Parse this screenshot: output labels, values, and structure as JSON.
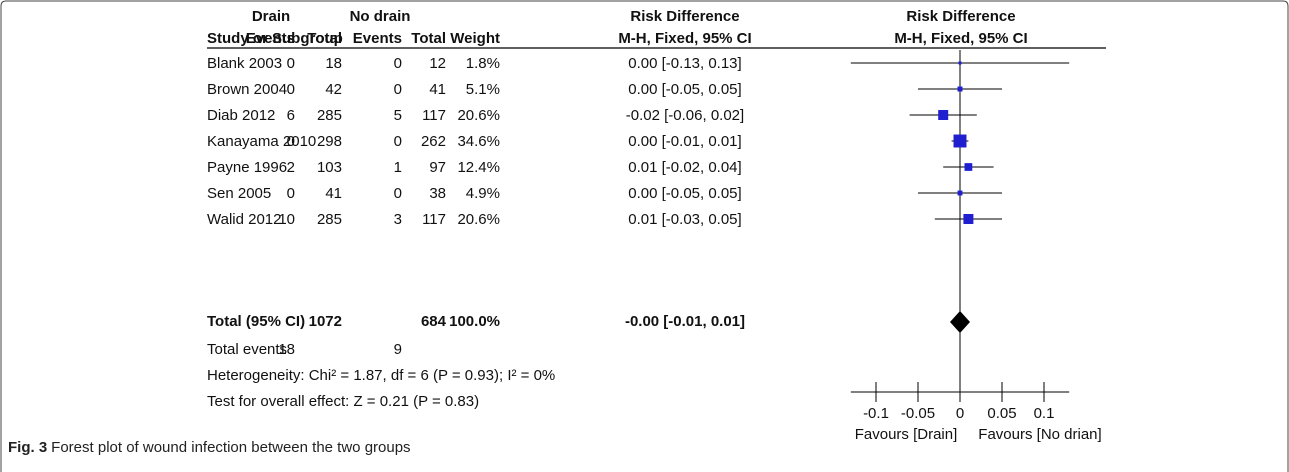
{
  "headers": {
    "group1": "Drain",
    "group2": "No drain",
    "rd_left_1": "Risk Difference",
    "rd_left_2": "M-H, Fixed, 95% CI",
    "rd_right_1": "Risk Difference",
    "rd_right_2": "M-H, Fixed, 95% CI",
    "study": "Study or Subgroup",
    "events1": "Events",
    "total1": "Total",
    "events2": "Events",
    "total2": "Total",
    "weight": "Weight"
  },
  "chart_data": {
    "type": "forest",
    "studies": [
      {
        "name": "Blank 2003",
        "e1": "0",
        "n1": "18",
        "e2": "0",
        "n2": "12",
        "weight": "1.8%",
        "ci_text": "0.00 [-0.13, 0.13]",
        "rd": 0.0,
        "lo": -0.13,
        "hi": 0.13,
        "w": 1.8
      },
      {
        "name": "Brown 2004",
        "e1": "0",
        "n1": "42",
        "e2": "0",
        "n2": "41",
        "weight": "5.1%",
        "ci_text": "0.00 [-0.05, 0.05]",
        "rd": 0.0,
        "lo": -0.05,
        "hi": 0.05,
        "w": 5.1
      },
      {
        "name": "Diab 2012",
        "e1": "6",
        "n1": "285",
        "e2": "5",
        "n2": "117",
        "weight": "20.6%",
        "ci_text": "-0.02 [-0.06, 0.02]",
        "rd": -0.02,
        "lo": -0.06,
        "hi": 0.02,
        "w": 20.6
      },
      {
        "name": "Kanayama 2010",
        "e1": "0",
        "n1": "298",
        "e2": "0",
        "n2": "262",
        "weight": "34.6%",
        "ci_text": "0.00 [-0.01, 0.01]",
        "rd": 0.0,
        "lo": -0.01,
        "hi": 0.01,
        "w": 34.6
      },
      {
        "name": "Payne 1996",
        "e1": "2",
        "n1": "103",
        "e2": "1",
        "n2": "97",
        "weight": "12.4%",
        "ci_text": "0.01 [-0.02, 0.04]",
        "rd": 0.01,
        "lo": -0.02,
        "hi": 0.04,
        "w": 12.4
      },
      {
        "name": "Sen 2005",
        "e1": "0",
        "n1": "41",
        "e2": "0",
        "n2": "38",
        "weight": "4.9%",
        "ci_text": "0.00 [-0.05, 0.05]",
        "rd": 0.0,
        "lo": -0.05,
        "hi": 0.05,
        "w": 4.9
      },
      {
        "name": "Walid 2012",
        "e1": "10",
        "n1": "285",
        "e2": "3",
        "n2": "117",
        "weight": "20.6%",
        "ci_text": "0.01 [-0.03, 0.05]",
        "rd": 0.01,
        "lo": -0.03,
        "hi": 0.05,
        "w": 20.6
      }
    ],
    "total": {
      "label": "Total (95% CI)",
      "n1": "1072",
      "n2": "684",
      "weight": "100.0%",
      "ci_text": "-0.00 [-0.01, 0.01]",
      "rd": 0.0,
      "lo": -0.01,
      "hi": 0.01
    },
    "total_events": {
      "label": "Total events",
      "e1": "18",
      "e2": "9"
    },
    "heterogeneity": "Heterogeneity: Chi² = 1.87, df = 6 (P = 0.93); I² = 0%",
    "overall_effect": "Test for overall effect: Z = 0.21 (P = 0.83)",
    "axis": {
      "min": -0.13,
      "max": 0.13,
      "ticks": [
        -0.1,
        -0.05,
        0,
        0.05,
        0.1
      ],
      "tick_labels": [
        "-0.1",
        "-0.05",
        "0",
        "0.05",
        "0.1"
      ]
    },
    "favours_left": "Favours [Drain]",
    "favours_right": "Favours [No drian]",
    "colors": {
      "square": "#1f1fd0",
      "diamond": "#000000",
      "line": "#000000"
    }
  },
  "caption": {
    "fig_label": "Fig. 3",
    "text": "Forest plot of wound infection between the two groups"
  }
}
